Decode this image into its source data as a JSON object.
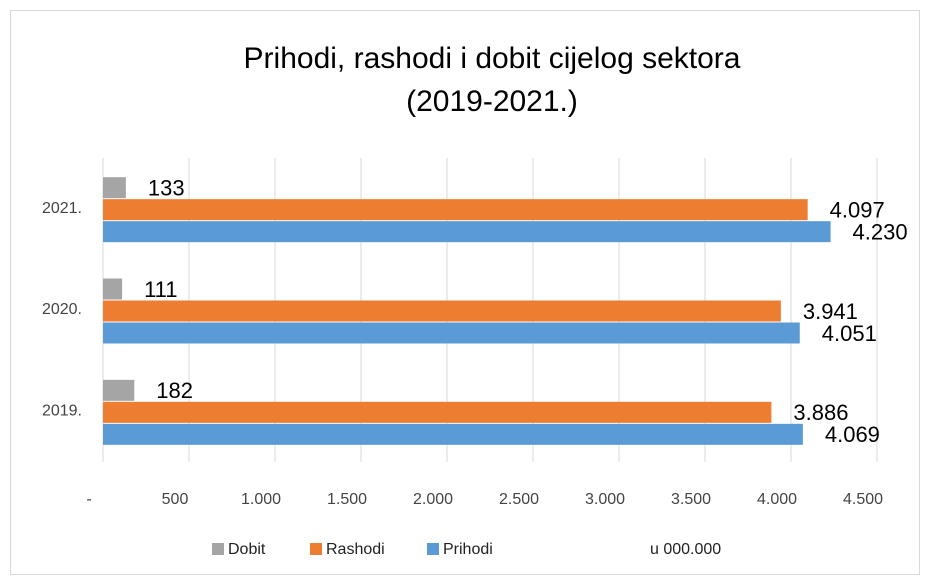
{
  "chart_data": {
    "type": "barh",
    "title": [
      "Prihodi, rashodi i dobit cijelog sektora",
      "(2019-2021.)"
    ],
    "categories": [
      "2019.",
      "2020.",
      "2021."
    ],
    "series": [
      {
        "name": "Dobit",
        "color": "#a5a5a5",
        "values": [
          182,
          111,
          133
        ]
      },
      {
        "name": "Rashodi",
        "color": "#ed7d31",
        "values": [
          3886,
          3941,
          4097
        ],
        "value_labels": [
          "3.886",
          "3.941",
          "4.097"
        ]
      },
      {
        "name": "Prihodi",
        "color": "#5b9bd5",
        "values": [
          4069,
          4051,
          4230
        ],
        "value_labels": [
          "4.069",
          "4.051",
          "4.230"
        ]
      }
    ],
    "xlim": [
      0,
      4500
    ],
    "xticks": [
      {
        "value": 0,
        "label": "-"
      },
      500,
      {
        "value": 1000,
        "label": "1.000"
      },
      {
        "value": 1500,
        "label": "1.500"
      },
      {
        "value": 2000,
        "label": "2.000"
      },
      {
        "value": 2500,
        "label": "2.500"
      },
      {
        "value": 3000,
        "label": "3.000"
      },
      {
        "value": 3500,
        "label": "3.500"
      },
      {
        "value": 4000,
        "label": "4.000"
      },
      {
        "value": 4500,
        "label": "4.500"
      }
    ],
    "grid": true,
    "legend": "bottom",
    "annotation": "u 000.000"
  }
}
